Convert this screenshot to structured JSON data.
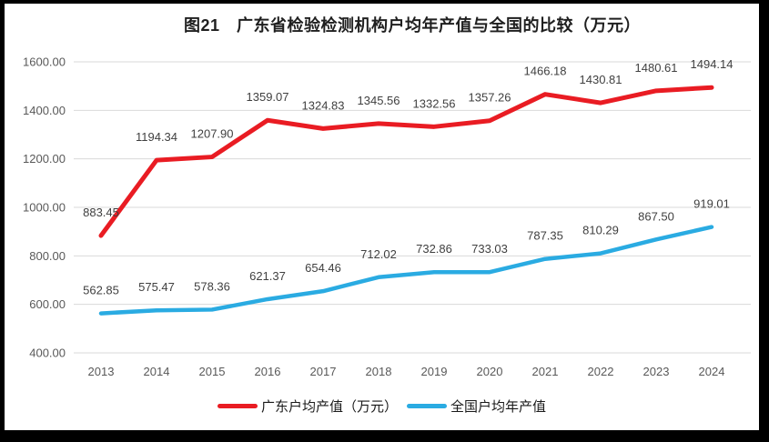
{
  "title": "图21　广东省检验检测机构户均年产值与全国的比较（万元）",
  "colors": {
    "grid": "#d9d9d9",
    "axis_text": "#595959",
    "data_label": "#404040",
    "title_text": "#1f1f1f",
    "frame": "#000000",
    "background": "#ffffff",
    "guangdong_red": "#e91c23",
    "national_blue": "#2aabe2"
  },
  "chart_data": {
    "type": "line",
    "title": "图21　广东省检验检测机构户均年产值与全国的比较（万元）",
    "categories": [
      "2013",
      "2014",
      "2015",
      "2016",
      "2017",
      "2018",
      "2019",
      "2020",
      "2021",
      "2022",
      "2023",
      "2024"
    ],
    "series": [
      {
        "name": "广东户均产值（万元）",
        "color": "#e91c23",
        "values": [
          883.45,
          1194.34,
          1207.9,
          1359.07,
          1324.83,
          1345.56,
          1332.56,
          1357.26,
          1466.18,
          1430.81,
          1480.61,
          1494.14
        ]
      },
      {
        "name": "全国户均年产值",
        "color": "#2aabe2",
        "values": [
          562.85,
          575.47,
          578.36,
          621.37,
          654.46,
          712.02,
          732.86,
          733.03,
          787.35,
          810.29,
          867.5,
          919.01
        ]
      }
    ],
    "xlabel": "",
    "ylabel": "",
    "ylim": [
      400,
      1600
    ],
    "ytick_step": 200,
    "yticks": [
      "1600.00",
      "1400.00",
      "1200.00",
      "1000.00",
      "800.00",
      "600.00",
      "400.00"
    ],
    "grid": true,
    "data_labels": true,
    "label_decimals": 2,
    "legend_position": "bottom"
  }
}
